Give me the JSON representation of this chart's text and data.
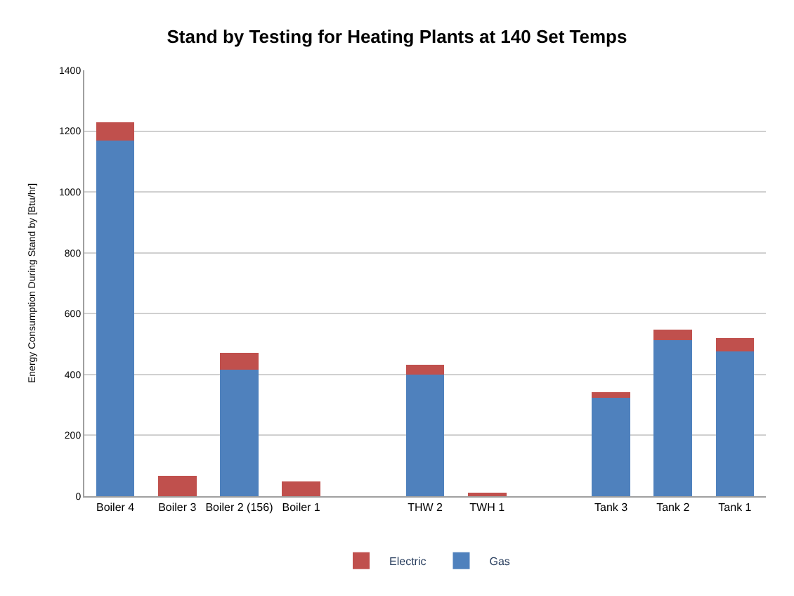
{
  "chart_data": {
    "type": "bar",
    "title": "Stand by Testing for Heating Plants at 140 Set Temps",
    "ylabel": "Energy Consumption During Stand by [Btu/hr]",
    "categories": [
      "Boiler 4",
      "Boiler 3",
      "Boiler 2 (156)",
      "Boiler 1",
      null,
      "THW 2",
      "TWH 1",
      null,
      "Tank 3",
      "Tank 2",
      "Tank 1"
    ],
    "series": [
      {
        "name": "Gas",
        "color": "#4f81bd",
        "values": [
          1170,
          0,
          416,
          0,
          null,
          400,
          0,
          null,
          323,
          513,
          477
        ]
      },
      {
        "name": "Electric",
        "color": "#c0504d",
        "values": [
          60,
          68,
          55,
          48,
          null,
          32,
          12,
          null,
          19,
          35,
          42
        ]
      }
    ],
    "stacked": true,
    "ylim": [
      0,
      1400
    ],
    "yticks": [
      0,
      200,
      400,
      600,
      800,
      1000,
      1200,
      1400
    ],
    "grid": "y",
    "legend": "bottom"
  }
}
